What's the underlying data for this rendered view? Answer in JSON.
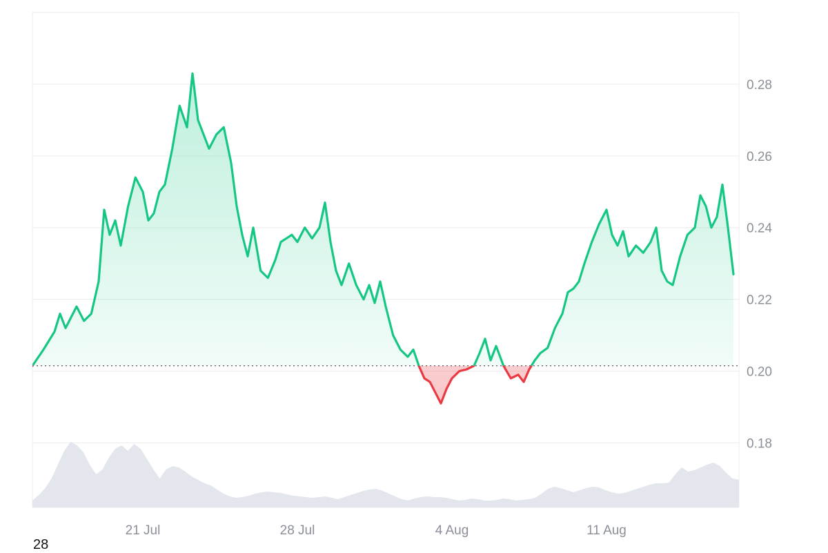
{
  "chart_data": {
    "type": "line",
    "baseline": 0.2015,
    "ylim": [
      0.162,
      0.3
    ],
    "y_ticks": [
      "0.18",
      "0.20",
      "0.22",
      "0.24",
      "0.26",
      "0.28"
    ],
    "x_ticks": [
      "21 Jul",
      "28 Jul",
      "4 Aug",
      "11 Aug"
    ],
    "colors": {
      "up": "#16c784",
      "down": "#ea3943",
      "volume": "#e3e6ec",
      "grid": "#ececec"
    },
    "series": [
      {
        "x": [
          "2024-07-16",
          "2024-07-16",
          "2024-07-17",
          "2024-07-17",
          "2024-07-17",
          "2024-07-17",
          "2024-07-18",
          "2024-07-18",
          "2024-07-18",
          "2024-07-19",
          "2024-07-19",
          "2024-07-19",
          "2024-07-19",
          "2024-07-20",
          "2024-07-20",
          "2024-07-20",
          "2024-07-21",
          "2024-07-21",
          "2024-07-21",
          "2024-07-21",
          "2024-07-22",
          "2024-07-22",
          "2024-07-22",
          "2024-07-23",
          "2024-07-23",
          "2024-07-23",
          "2024-07-23",
          "2024-07-24",
          "2024-07-24",
          "2024-07-24",
          "2024-07-25",
          "2024-07-25",
          "2024-07-25",
          "2024-07-25",
          "2024-07-26",
          "2024-07-26",
          "2024-07-26",
          "2024-07-27",
          "2024-07-27",
          "2024-07-27",
          "2024-07-27",
          "2024-07-28",
          "2024-07-28",
          "2024-07-28",
          "2024-07-29",
          "2024-07-29",
          "2024-07-29",
          "2024-07-29",
          "2024-07-30",
          "2024-07-30",
          "2024-07-30",
          "2024-07-31",
          "2024-07-31",
          "2024-07-31",
          "2024-07-31",
          "2024-08-01",
          "2024-08-01",
          "2024-08-01",
          "2024-08-02",
          "2024-08-02",
          "2024-08-02",
          "2024-08-02",
          "2024-08-03",
          "2024-08-03",
          "2024-08-03",
          "2024-08-03",
          "2024-08-04",
          "2024-08-04",
          "2024-08-04",
          "2024-08-05",
          "2024-08-05",
          "2024-08-05",
          "2024-08-05",
          "2024-08-06",
          "2024-08-06",
          "2024-08-06",
          "2024-08-07",
          "2024-08-07",
          "2024-08-07",
          "2024-08-07",
          "2024-08-08",
          "2024-08-08",
          "2024-08-08",
          "2024-08-09",
          "2024-08-09",
          "2024-08-09",
          "2024-08-09",
          "2024-08-10",
          "2024-08-10",
          "2024-08-10",
          "2024-08-11",
          "2024-08-11",
          "2024-08-11",
          "2024-08-11",
          "2024-08-12",
          "2024-08-12",
          "2024-08-12",
          "2024-08-13",
          "2024-08-13",
          "2024-08-13",
          "2024-08-13",
          "2024-08-14",
          "2024-08-14",
          "2024-08-14",
          "2024-08-15",
          "2024-08-15",
          "2024-08-15",
          "2024-08-15",
          "2024-08-16",
          "2024-08-16",
          "2024-08-16",
          "2024-08-16"
        ],
        "values": [
          0.2015,
          0.206,
          0.211,
          0.216,
          0.212,
          0.215,
          0.218,
          0.214,
          0.216,
          0.225,
          0.245,
          0.238,
          0.242,
          0.235,
          0.246,
          0.254,
          0.25,
          0.242,
          0.244,
          0.25,
          0.252,
          0.262,
          0.274,
          0.268,
          0.283,
          0.27,
          0.266,
          0.262,
          0.266,
          0.268,
          0.258,
          0.246,
          0.238,
          0.232,
          0.24,
          0.228,
          0.226,
          0.231,
          0.236,
          0.237,
          0.238,
          0.236,
          0.24,
          0.237,
          0.24,
          0.247,
          0.236,
          0.228,
          0.224,
          0.23,
          0.224,
          0.22,
          0.224,
          0.219,
          0.225,
          0.218,
          0.21,
          0.206,
          0.204,
          0.206,
          0.2015,
          0.198,
          0.197,
          0.194,
          0.191,
          0.195,
          0.198,
          0.2,
          0.2005,
          0.2015,
          0.205,
          0.209,
          0.203,
          0.207,
          0.2015,
          0.198,
          0.199,
          0.197,
          0.2005,
          0.203,
          0.205,
          0.2065,
          0.212,
          0.216,
          0.222,
          0.223,
          0.225,
          0.23,
          0.236,
          0.241,
          0.245,
          0.238,
          0.235,
          0.239,
          0.232,
          0.235,
          0.233,
          0.236,
          0.24,
          0.228,
          0.225,
          0.224,
          0.232,
          0.238,
          0.24,
          0.249,
          0.246,
          0.24,
          0.243,
          0.252,
          0.24,
          0.227
        ]
      }
    ],
    "volume": [
      0.1,
      0.18,
      0.28,
      0.42,
      0.62,
      0.82,
      0.95,
      0.9,
      0.8,
      0.62,
      0.48,
      0.55,
      0.72,
      0.85,
      0.9,
      0.82,
      0.92,
      0.85,
      0.7,
      0.55,
      0.42,
      0.55,
      0.6,
      0.58,
      0.52,
      0.45,
      0.4,
      0.35,
      0.32,
      0.26,
      0.2,
      0.16,
      0.14,
      0.15,
      0.17,
      0.2,
      0.22,
      0.23,
      0.22,
      0.21,
      0.19,
      0.17,
      0.16,
      0.15,
      0.14,
      0.15,
      0.16,
      0.14,
      0.12,
      0.15,
      0.18,
      0.21,
      0.24,
      0.26,
      0.27,
      0.24,
      0.2,
      0.16,
      0.12,
      0.1,
      0.13,
      0.15,
      0.16,
      0.15,
      0.15,
      0.14,
      0.12,
      0.1,
      0.11,
      0.13,
      0.12,
      0.1,
      0.1,
      0.11,
      0.13,
      0.12,
      0.1,
      0.11,
      0.12,
      0.14,
      0.2,
      0.27,
      0.3,
      0.28,
      0.25,
      0.22,
      0.25,
      0.28,
      0.3,
      0.29,
      0.25,
      0.22,
      0.2,
      0.21,
      0.24,
      0.27,
      0.3,
      0.33,
      0.35,
      0.35,
      0.36,
      0.48,
      0.58,
      0.52,
      0.54,
      0.58,
      0.62,
      0.65,
      0.6,
      0.5,
      0.42,
      0.4
    ]
  },
  "footer_note": "28"
}
